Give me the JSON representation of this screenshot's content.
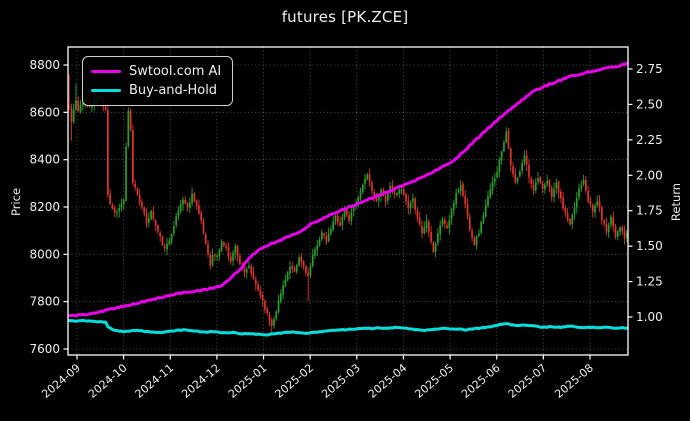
{
  "title": "futures [PK.ZCE]",
  "legend": {
    "items": [
      {
        "label": "Swtool.com AI",
        "color": "#e800e8"
      },
      {
        "label": "Buy-and-Hold",
        "color": "#00dede"
      }
    ]
  },
  "colors": {
    "background": "#000000",
    "text": "#efefef",
    "spine": "#ffffff",
    "grid": "rgba(255,255,255,0.38)",
    "candle_up": "#27a327",
    "candle_down": "#e2332c",
    "ai_line": "#e800e8",
    "bh_line": "#00dede"
  },
  "chart_data": {
    "type": "candlestick+line",
    "title": "futures [PK.ZCE]",
    "left_axis": {
      "label": "Price",
      "ticks": [
        7600,
        7800,
        8000,
        8200,
        8400,
        8600,
        8800
      ],
      "range": [
        7575,
        8876
      ]
    },
    "right_axis": {
      "label": "Return",
      "ticks": [
        "1.00",
        "1.25",
        "1.50",
        "1.75",
        "2.00",
        "2.25",
        "2.50",
        "2.75"
      ],
      "range": [
        0.73,
        2.9
      ]
    },
    "x_ticks": [
      "2024-09",
      "2024-10",
      "2024-11",
      "2024-12",
      "2025-01",
      "2025-02",
      "2025-03",
      "2025-04",
      "2025-05",
      "2025-06",
      "2025-07",
      "2025-08"
    ],
    "grid": true,
    "legend_position": "upper-left",
    "n_days": 246,
    "seed": 11,
    "candles": {
      "up_color": "#27a327",
      "down_color": "#e2332c",
      "noise": 16,
      "close_anchors": [
        [
          0,
          8620
        ],
        [
          1,
          8560
        ],
        [
          2,
          8610
        ],
        [
          3,
          8650
        ],
        [
          4,
          8600
        ],
        [
          5,
          8630
        ],
        [
          7,
          8660
        ],
        [
          9,
          8625
        ],
        [
          11,
          8650
        ],
        [
          13,
          8665
        ],
        [
          15,
          8630
        ],
        [
          16,
          8615
        ],
        [
          17,
          8255
        ],
        [
          18,
          8215
        ],
        [
          20,
          8175
        ],
        [
          22,
          8195
        ],
        [
          24,
          8230
        ],
        [
          25,
          8450
        ],
        [
          26,
          8600
        ],
        [
          27,
          8525
        ],
        [
          28,
          8305
        ],
        [
          30,
          8255
        ],
        [
          32,
          8195
        ],
        [
          34,
          8135
        ],
        [
          36,
          8180
        ],
        [
          38,
          8120
        ],
        [
          40,
          8070
        ],
        [
          42,
          8020
        ],
        [
          44,
          8060
        ],
        [
          46,
          8125
        ],
        [
          48,
          8185
        ],
        [
          50,
          8235
        ],
        [
          52,
          8195
        ],
        [
          54,
          8255
        ],
        [
          56,
          8205
        ],
        [
          58,
          8135
        ],
        [
          60,
          8045
        ],
        [
          62,
          7960
        ],
        [
          63,
          7995
        ],
        [
          65,
          7990
        ],
        [
          67,
          8055
        ],
        [
          69,
          8020
        ],
        [
          71,
          7975
        ],
        [
          73,
          8035
        ],
        [
          75,
          7960
        ],
        [
          77,
          7915
        ],
        [
          79,
          7950
        ],
        [
          81,
          7890
        ],
        [
          83,
          7850
        ],
        [
          85,
          7805
        ],
        [
          87,
          7745
        ],
        [
          89,
          7700
        ],
        [
          91,
          7765
        ],
        [
          93,
          7835
        ],
        [
          95,
          7900
        ],
        [
          97,
          7945
        ],
        [
          99,
          7920
        ],
        [
          101,
          7985
        ],
        [
          103,
          7950
        ],
        [
          105,
          7905
        ],
        [
          107,
          7990
        ],
        [
          109,
          8045
        ],
        [
          111,
          8090
        ],
        [
          113,
          8055
        ],
        [
          115,
          8110
        ],
        [
          117,
          8160
        ],
        [
          119,
          8125
        ],
        [
          121,
          8185
        ],
        [
          123,
          8145
        ],
        [
          125,
          8205
        ],
        [
          127,
          8240
        ],
        [
          129,
          8300
        ],
        [
          131,
          8330
        ],
        [
          133,
          8275
        ],
        [
          135,
          8220
        ],
        [
          137,
          8270
        ],
        [
          139,
          8230
        ],
        [
          141,
          8290
        ],
        [
          143,
          8250
        ],
        [
          145,
          8280
        ],
        [
          147,
          8250
        ],
        [
          149,
          8190
        ],
        [
          151,
          8230
        ],
        [
          153,
          8160
        ],
        [
          155,
          8090
        ],
        [
          157,
          8140
        ],
        [
          159,
          8060
        ],
        [
          160,
          8010
        ],
        [
          162,
          8090
        ],
        [
          164,
          8150
        ],
        [
          166,
          8110
        ],
        [
          168,
          8180
        ],
        [
          170,
          8260
        ],
        [
          172,
          8290
        ],
        [
          174,
          8210
        ],
        [
          176,
          8110
        ],
        [
          178,
          8045
        ],
        [
          180,
          8095
        ],
        [
          182,
          8170
        ],
        [
          184,
          8240
        ],
        [
          186,
          8300
        ],
        [
          188,
          8355
        ],
        [
          190,
          8440
        ],
        [
          192,
          8520
        ],
        [
          193,
          8455
        ],
        [
          194,
          8370
        ],
        [
          196,
          8300
        ],
        [
          198,
          8345
        ],
        [
          200,
          8420
        ],
        [
          202,
          8330
        ],
        [
          204,
          8275
        ],
        [
          206,
          8330
        ],
        [
          208,
          8270
        ],
        [
          210,
          8310
        ],
        [
          212,
          8250
        ],
        [
          214,
          8300
        ],
        [
          216,
          8230
        ],
        [
          218,
          8170
        ],
        [
          220,
          8120
        ],
        [
          222,
          8200
        ],
        [
          224,
          8280
        ],
        [
          226,
          8320
        ],
        [
          228,
          8230
        ],
        [
          230,
          8180
        ],
        [
          232,
          8230
        ],
        [
          234,
          8150
        ],
        [
          236,
          8100
        ],
        [
          238,
          8160
        ],
        [
          240,
          8080
        ],
        [
          242,
          8120
        ],
        [
          244,
          8065
        ],
        [
          245,
          8090
        ]
      ],
      "specials": [
        {
          "i": 0,
          "high": 8760
        },
        {
          "i": 1,
          "low": 8480
        },
        {
          "i": 3,
          "high": 8722
        },
        {
          "i": 25,
          "low": 8408
        },
        {
          "i": 26,
          "high": 8622
        },
        {
          "i": 89,
          "low": 7672
        },
        {
          "i": 105,
          "low": 7802
        },
        {
          "i": 192,
          "high": 8537
        }
      ]
    },
    "series": [
      {
        "name": "Swtool.com AI",
        "axis": "right",
        "color": "#e800e8",
        "width": 3,
        "noise": 0.012,
        "anchors": [
          [
            0,
            1.01
          ],
          [
            4,
            1.013
          ],
          [
            8,
            1.02
          ],
          [
            12,
            1.032
          ],
          [
            16,
            1.046
          ],
          [
            20,
            1.062
          ],
          [
            25,
            1.08
          ],
          [
            29,
            1.094
          ],
          [
            33,
            1.108
          ],
          [
            37,
            1.122
          ],
          [
            41,
            1.14
          ],
          [
            45,
            1.155
          ],
          [
            49,
            1.168
          ],
          [
            53,
            1.178
          ],
          [
            57,
            1.188
          ],
          [
            61,
            1.198
          ],
          [
            66,
            1.212
          ],
          [
            68,
            1.23
          ],
          [
            70,
            1.258
          ],
          [
            72,
            1.288
          ],
          [
            74,
            1.32
          ],
          [
            76,
            1.355
          ],
          [
            78,
            1.392
          ],
          [
            80,
            1.425
          ],
          [
            82,
            1.455
          ],
          [
            84,
            1.48
          ],
          [
            86,
            1.5
          ],
          [
            90,
            1.523
          ],
          [
            94,
            1.55
          ],
          [
            98,
            1.578
          ],
          [
            102,
            1.61
          ],
          [
            106,
            1.655
          ],
          [
            110,
            1.685
          ],
          [
            114,
            1.712
          ],
          [
            118,
            1.74
          ],
          [
            122,
            1.77
          ],
          [
            127,
            1.8
          ],
          [
            131,
            1.828
          ],
          [
            135,
            1.852
          ],
          [
            139,
            1.878
          ],
          [
            143,
            1.902
          ],
          [
            147,
            1.928
          ],
          [
            151,
            1.955
          ],
          [
            155,
            1.985
          ],
          [
            159,
            2.015
          ],
          [
            163,
            2.05
          ],
          [
            168,
            2.09
          ],
          [
            172,
            2.15
          ],
          [
            176,
            2.21
          ],
          [
            180,
            2.27
          ],
          [
            184,
            2.33
          ],
          [
            188,
            2.39
          ],
          [
            192,
            2.445
          ],
          [
            196,
            2.495
          ],
          [
            200,
            2.545
          ],
          [
            204,
            2.59
          ],
          [
            209,
            2.63
          ],
          [
            213,
            2.655
          ],
          [
            217,
            2.678
          ],
          [
            221,
            2.7
          ],
          [
            225,
            2.715
          ],
          [
            229,
            2.73
          ],
          [
            233,
            2.745
          ],
          [
            237,
            2.758
          ],
          [
            241,
            2.772
          ],
          [
            245,
            2.788
          ]
        ]
      },
      {
        "name": "Buy-and-Hold",
        "axis": "right",
        "color": "#00dede",
        "width": 3,
        "noise": 0.006,
        "anchors": [
          [
            0,
            0.975
          ],
          [
            3,
            0.971
          ],
          [
            6,
            0.975
          ],
          [
            9,
            0.972
          ],
          [
            12,
            0.968
          ],
          [
            15,
            0.966
          ],
          [
            16,
            0.962
          ],
          [
            17,
            0.93
          ],
          [
            19,
            0.912
          ],
          [
            21,
            0.903
          ],
          [
            24,
            0.897
          ],
          [
            27,
            0.903
          ],
          [
            30,
            0.907
          ],
          [
            33,
            0.898
          ],
          [
            36,
            0.893
          ],
          [
            39,
            0.89
          ],
          [
            42,
            0.894
          ],
          [
            45,
            0.901
          ],
          [
            48,
            0.906
          ],
          [
            51,
            0.909
          ],
          [
            54,
            0.905
          ],
          [
            57,
            0.899
          ],
          [
            60,
            0.893
          ],
          [
            63,
            0.897
          ],
          [
            66,
            0.89
          ],
          [
            69,
            0.886
          ],
          [
            72,
            0.889
          ],
          [
            75,
            0.884
          ],
          [
            78,
            0.881
          ],
          [
            81,
            0.879
          ],
          [
            84,
            0.877
          ],
          [
            87,
            0.875
          ],
          [
            90,
            0.882
          ],
          [
            93,
            0.887
          ],
          [
            96,
            0.891
          ],
          [
            99,
            0.894
          ],
          [
            102,
            0.89
          ],
          [
            105,
            0.886
          ],
          [
            108,
            0.893
          ],
          [
            111,
            0.898
          ],
          [
            114,
            0.902
          ],
          [
            117,
            0.906
          ],
          [
            120,
            0.909
          ],
          [
            123,
            0.913
          ],
          [
            127,
            0.917
          ],
          [
            130,
            0.922
          ],
          [
            133,
            0.918
          ],
          [
            136,
            0.924
          ],
          [
            139,
            0.921
          ],
          [
            143,
            0.925
          ],
          [
            147,
            0.921
          ],
          [
            150,
            0.915
          ],
          [
            153,
            0.909
          ],
          [
            156,
            0.905
          ],
          [
            159,
            0.911
          ],
          [
            162,
            0.915
          ],
          [
            165,
            0.919
          ],
          [
            168,
            0.913
          ],
          [
            171,
            0.917
          ],
          [
            174,
            0.91
          ],
          [
            177,
            0.915
          ],
          [
            180,
            0.921
          ],
          [
            184,
            0.928
          ],
          [
            187,
            0.938
          ],
          [
            190,
            0.95
          ],
          [
            192,
            0.955
          ],
          [
            194,
            0.947
          ],
          [
            197,
            0.94
          ],
          [
            200,
            0.944
          ],
          [
            203,
            0.937
          ],
          [
            206,
            0.932
          ],
          [
            209,
            0.928
          ],
          [
            212,
            0.933
          ],
          [
            215,
            0.927
          ],
          [
            218,
            0.931
          ],
          [
            221,
            0.934
          ],
          [
            224,
            0.928
          ],
          [
            227,
            0.924
          ],
          [
            230,
            0.928
          ],
          [
            233,
            0.924
          ],
          [
            236,
            0.927
          ],
          [
            239,
            0.922
          ],
          [
            242,
            0.925
          ],
          [
            245,
            0.92
          ]
        ]
      }
    ]
  }
}
